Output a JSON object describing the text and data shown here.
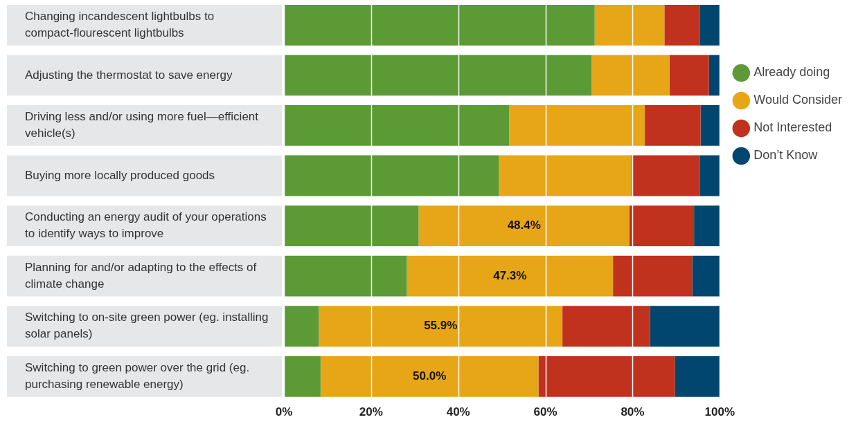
{
  "chart_data": {
    "type": "bar",
    "orientation": "horizontal",
    "stacked": true,
    "categories": [
      "Changing incandescent lightbulbs to compact-flourescent lightbulbs",
      "Adjusting the thermostat to save energy",
      "Driving less and/or using more fuel—efficient vehicle(s)",
      "Buying more locally produced goods",
      "Conducting an energy audit of your operations to identify ways to improve",
      "Planning for and/or adapting to the effects of climate change",
      "Switching to on-site green power (eg. installing solar panels)",
      "Switching to green power over the grid (eg. purchasing renewable energy)"
    ],
    "series": [
      {
        "name": "Already doing",
        "color": "#5b9a35",
        "values": [
          71.3,
          70.6,
          51.7,
          49.3,
          30.9,
          28.2,
          8.0,
          8.4
        ]
      },
      {
        "name": "Would Consider",
        "color": "#e6a617",
        "values": [
          16.0,
          17.9,
          31.1,
          30.4,
          48.4,
          47.3,
          55.9,
          50.0
        ],
        "value_labels": [
          null,
          null,
          null,
          null,
          "48.4%",
          "47.3%",
          "55.9%",
          "50.0%"
        ]
      },
      {
        "name": "Not Interested",
        "color": "#c0311e",
        "values": [
          8.1,
          9.0,
          12.8,
          15.7,
          14.8,
          18.2,
          20.1,
          31.3
        ]
      },
      {
        "name": "Don’t Know",
        "color": "#00466e",
        "values": [
          4.6,
          2.5,
          4.4,
          4.6,
          5.9,
          6.3,
          16.0,
          10.3
        ]
      }
    ],
    "xlim": [
      0,
      100
    ],
    "xticks": [
      {
        "value": 0,
        "label": "0%"
      },
      {
        "value": 20,
        "label": "20%"
      },
      {
        "value": 40,
        "label": "40%"
      },
      {
        "value": 60,
        "label": "60%"
      },
      {
        "value": 80,
        "label": "80%"
      },
      {
        "value": 100,
        "label": "100%"
      }
    ],
    "grid": "x",
    "legend": "right"
  }
}
